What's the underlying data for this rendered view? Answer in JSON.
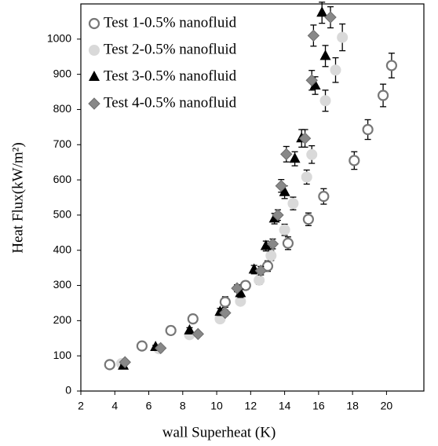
{
  "chart_data": {
    "type": "scatter",
    "x_label": "wall Superheat (K)",
    "y_label": "Heat Flux(kW/m²)",
    "xlim": [
      2,
      22.2
    ],
    "ylim": [
      0,
      1100
    ],
    "xticks": [
      2,
      4,
      6,
      8,
      10,
      12,
      14,
      16,
      18,
      20
    ],
    "yticks": [
      0,
      100,
      200,
      300,
      400,
      500,
      600,
      700,
      800,
      900,
      1000
    ],
    "grid": false,
    "legend": "upper left",
    "series": [
      {
        "name": "Test 1-0.5% nanofluid",
        "marker": "open-circle",
        "color": "#777777",
        "x": [
          3.7,
          5.6,
          7.3,
          8.6,
          10.5,
          11.7,
          13,
          14.2,
          15.4,
          16.3,
          18.1,
          18.9,
          19.8,
          20.3
        ],
        "values": [
          75,
          128,
          172,
          205,
          253,
          300,
          355,
          420,
          488,
          553,
          655,
          743,
          840,
          925
        ],
        "errors": [
          5,
          8,
          12,
          12,
          15,
          12,
          15,
          18,
          18,
          22,
          25,
          28,
          32,
          35
        ]
      },
      {
        "name": "Test 2-0.5% nanofluid",
        "marker": "circle",
        "color": "#d9d9d9",
        "x": [
          4.4,
          6.6,
          8.4,
          10.2,
          11.4,
          12.5,
          13.2,
          14,
          14.5,
          15.3,
          15.6,
          16.4,
          17,
          17.4
        ],
        "values": [
          78,
          120,
          160,
          205,
          255,
          315,
          385,
          458,
          533,
          608,
          672,
          825,
          912,
          1005
        ],
        "errors": [
          5,
          6,
          6,
          8,
          10,
          12,
          14,
          16,
          18,
          20,
          25,
          30,
          35,
          38
        ]
      },
      {
        "name": "Test 3-0.5% nanofluid",
        "marker": "triangle",
        "color": "#000000",
        "x": [
          4.5,
          6.4,
          8.4,
          10.2,
          11.4,
          12.2,
          12.9,
          13.4,
          14,
          14.6,
          15,
          15.8,
          16.4,
          16.2
        ],
        "values": [
          72,
          125,
          172,
          225,
          278,
          345,
          412,
          490,
          565,
          660,
          718,
          868,
          952,
          1075
        ],
        "errors": [
          3,
          5,
          8,
          10,
          12,
          12,
          14,
          15,
          18,
          20,
          25,
          25,
          30,
          30
        ]
      },
      {
        "name": "Test 4-0.5% nanofluid",
        "marker": "diamond",
        "color": "#888888",
        "x": [
          4.6,
          6.7,
          8.9,
          10.5,
          11.2,
          12.6,
          13.3,
          13.6,
          13.8,
          14.1,
          15.2,
          15.6,
          15.7,
          16.7
        ],
        "values": [
          82,
          122,
          162,
          222,
          292,
          342,
          418,
          500,
          583,
          673,
          718,
          883,
          1010,
          1062
        ],
        "errors": [
          4,
          5,
          6,
          8,
          10,
          12,
          14,
          15,
          18,
          22,
          25,
          28,
          30,
          30
        ]
      }
    ]
  }
}
